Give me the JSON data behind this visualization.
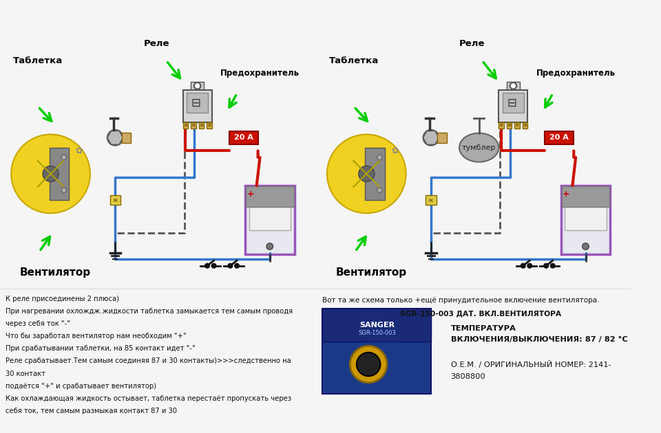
{
  "bg_color": "#f5f5f5",
  "left_diagram": {
    "label_tabletka": "Таблетка",
    "label_rele": "Реле",
    "label_predohranitel": "Предохранитель",
    "label_20a": "20 А",
    "label_ventilator": "Вентилятор"
  },
  "right_diagram": {
    "label_tabletka": "Таблетка",
    "label_rele": "Реле",
    "label_predohranitel": "Предохранитель",
    "label_20a": "20 А",
    "label_ventilator": "Вентилятор",
    "label_tumbler": "тумблер"
  },
  "bottom_left_text": [
    "К реле присоединены 2 плюса)",
    "При нагревании охлождж.жидкости таблетка замыкается тем самым проводя",
    "через себя ток \"-\"",
    "Что бы заработал вентилятор нам необходим \"+\"",
    "При срабатывании таблетки, на 85 контакт идет \"-\"",
    "Реле срабатывает.Тем самым соединяя 87 и 30 контакты)>>>следственно на",
    "30 контакт",
    "подаётся \"+\" и срабатывает вентилятор)",
    "Как охлаждающая жидкость остывает, таблетка перестаёт пропускать через",
    "себя ток, тем самым размыкая контакт 87 и 30"
  ],
  "bottom_right_header": "Вот та же схема только +ещё принудительное включение вентилятора.",
  "bottom_right_text1": "SGR-150-003 ДАТ. ВКЛ.ВЕНТИЛЯТОРА",
  "bottom_right_text2": "ТЕМПЕРАТУРА\nВКЛЮЧЕНИЯ/ВЫКЛЮЧЕНИЯ: 87 / 82 °С",
  "bottom_right_text3": "О.Е.М. / ОРИГИНАЛЬНЫЙ НОМЕР: 2141-\n3808800",
  "wire_red": "#cc1100",
  "wire_blue": "#3377cc",
  "wire_dashed": "#555555",
  "fan_yellow": "#f0d020",
  "battery_purple": "#9955bb",
  "arrow_green": "#00cc00",
  "fuse_red": "#cc1100",
  "relay_body": "#d8d8d8",
  "relay_pins": "#ccaa44",
  "font_size_label": 9.5,
  "font_size_body": 7.2
}
